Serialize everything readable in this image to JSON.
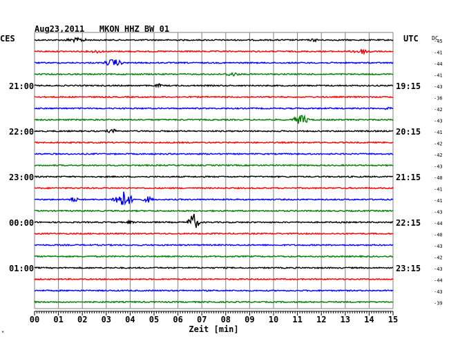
{
  "chart_data": {
    "type": "line",
    "title": "Aug23,2011   MKON HHZ BW 01",
    "left_header": "CES",
    "right_header": "UTC",
    "dc_header": "DC",
    "xlabel": "Zeit [min]",
    "xlim": [
      0,
      15
    ],
    "x_ticks": [
      "00",
      "01",
      "02",
      "03",
      "04",
      "05",
      "06",
      "07",
      "08",
      "09",
      "10",
      "11",
      "12",
      "13",
      "14",
      "15"
    ],
    "trace_count": 24,
    "trace_colors": [
      "#000000",
      "#ff0000",
      "#0000ff",
      "#007f00"
    ],
    "left_time_labels": [
      {
        "trace": 4,
        "label": "21:00"
      },
      {
        "trace": 8,
        "label": "22:00"
      },
      {
        "trace": 12,
        "label": "23:00"
      },
      {
        "trace": 16,
        "label": "00:00"
      },
      {
        "trace": 20,
        "label": "01:00"
      }
    ],
    "right_time_labels": [
      {
        "trace": 4,
        "label": "19:15"
      },
      {
        "trace": 8,
        "label": "20:15"
      },
      {
        "trace": 12,
        "label": "21:15"
      },
      {
        "trace": 16,
        "label": "22:15"
      },
      {
        "trace": 20,
        "label": "23:15"
      }
    ],
    "dc_values": [
      "-45",
      "-41",
      "-44",
      "-41",
      "-43",
      "-36",
      "-42",
      "-43",
      "-41",
      "-42",
      "-42",
      "-43",
      "-40",
      "-41",
      "-41",
      "-43",
      "-44",
      "-40",
      "-43",
      "-42",
      "-43",
      "-44",
      "-43",
      "-39"
    ],
    "events": [
      {
        "trace": 0,
        "start": 1.3,
        "end": 2.2,
        "amp": 3.5
      },
      {
        "trace": 0,
        "start": 11.5,
        "end": 11.9,
        "amp": 2.5
      },
      {
        "trace": 1,
        "start": 2.3,
        "end": 2.9,
        "amp": 2.5
      },
      {
        "trace": 1,
        "start": 13.3,
        "end": 14.1,
        "amp": 4.0
      },
      {
        "trace": 2,
        "start": 3.0,
        "end": 3.6,
        "amp": 6.0
      },
      {
        "trace": 3,
        "start": 8.0,
        "end": 8.5,
        "amp": 3.5
      },
      {
        "trace": 4,
        "start": 5.1,
        "end": 5.3,
        "amp": 3.0
      },
      {
        "trace": 6,
        "start": 14.6,
        "end": 14.9,
        "amp": 2.5
      },
      {
        "trace": 7,
        "start": 10.9,
        "end": 11.4,
        "amp": 8.0
      },
      {
        "trace": 8,
        "start": 3.0,
        "end": 3.6,
        "amp": 3.0
      },
      {
        "trace": 14,
        "start": 1.5,
        "end": 1.8,
        "amp": 4.0
      },
      {
        "trace": 14,
        "start": 3.4,
        "end": 4.0,
        "amp": 13.0
      },
      {
        "trace": 14,
        "start": 4.6,
        "end": 4.9,
        "amp": 5.0
      },
      {
        "trace": 16,
        "start": 3.9,
        "end": 4.1,
        "amp": 3.0
      },
      {
        "trace": 16,
        "start": 6.5,
        "end": 6.8,
        "amp": 14.0
      },
      {
        "trace": 23,
        "start": 7.3,
        "end": 7.5,
        "amp": 2.5
      }
    ],
    "footnote": "*"
  }
}
